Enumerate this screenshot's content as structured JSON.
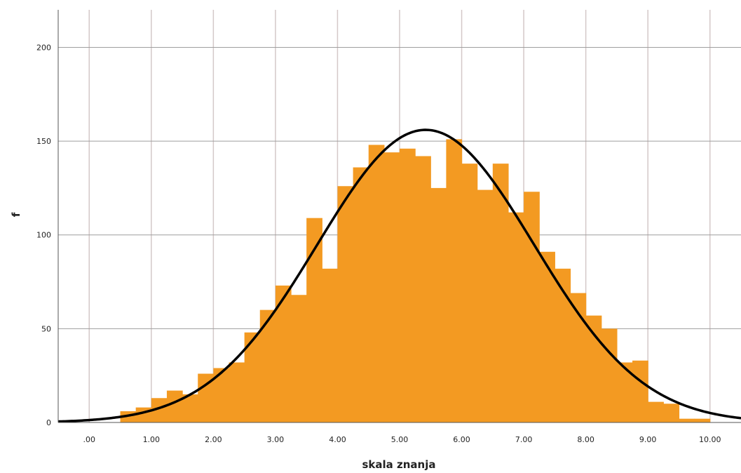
{
  "chart_data": {
    "type": "bar",
    "title": "",
    "xlabel": "skala znanja",
    "ylabel": "f",
    "xlim": [
      -0.5,
      10.5
    ],
    "ylim": [
      0,
      220
    ],
    "x_ticks": [
      0,
      1,
      2,
      3,
      4,
      5,
      6,
      7,
      8,
      9,
      10
    ],
    "x_tick_labels": [
      ".00",
      "1.00",
      "2.00",
      "3.00",
      "4.00",
      "5.00",
      "6.00",
      "7.00",
      "8.00",
      "9.00",
      "10.00"
    ],
    "y_ticks": [
      0,
      50,
      100,
      150,
      200
    ],
    "y_tick_labels": [
      "0",
      "50",
      "100",
      "150",
      "200"
    ],
    "grid": true,
    "bin_width": 0.25,
    "bins": [
      {
        "x0": 0.5,
        "value": 6
      },
      {
        "x0": 0.75,
        "value": 8
      },
      {
        "x0": 1.0,
        "value": 13
      },
      {
        "x0": 1.25,
        "value": 17
      },
      {
        "x0": 1.5,
        "value": 15
      },
      {
        "x0": 1.75,
        "value": 26
      },
      {
        "x0": 2.0,
        "value": 29
      },
      {
        "x0": 2.25,
        "value": 32
      },
      {
        "x0": 2.5,
        "value": 48
      },
      {
        "x0": 2.75,
        "value": 60
      },
      {
        "x0": 3.0,
        "value": 73
      },
      {
        "x0": 3.25,
        "value": 68
      },
      {
        "x0": 3.5,
        "value": 109
      },
      {
        "x0": 3.75,
        "value": 82
      },
      {
        "x0": 4.0,
        "value": 126
      },
      {
        "x0": 4.25,
        "value": 136
      },
      {
        "x0": 4.5,
        "value": 148
      },
      {
        "x0": 4.75,
        "value": 144
      },
      {
        "x0": 5.0,
        "value": 146
      },
      {
        "x0": 5.25,
        "value": 142
      },
      {
        "x0": 5.5,
        "value": 125
      },
      {
        "x0": 5.75,
        "value": 151
      },
      {
        "x0": 6.0,
        "value": 138
      },
      {
        "x0": 6.25,
        "value": 124
      },
      {
        "x0": 6.5,
        "value": 138
      },
      {
        "x0": 6.75,
        "value": 112
      },
      {
        "x0": 7.0,
        "value": 123
      },
      {
        "x0": 7.25,
        "value": 91
      },
      {
        "x0": 7.5,
        "value": 82
      },
      {
        "x0": 7.75,
        "value": 69
      },
      {
        "x0": 8.0,
        "value": 57
      },
      {
        "x0": 8.25,
        "value": 50
      },
      {
        "x0": 8.5,
        "value": 32
      },
      {
        "x0": 8.75,
        "value": 33
      },
      {
        "x0": 9.0,
        "value": 11
      },
      {
        "x0": 9.25,
        "value": 10
      },
      {
        "x0": 9.5,
        "value": 2
      },
      {
        "x0": 9.75,
        "value": 2
      }
    ],
    "normal_curve": {
      "mean": 5.42,
      "sd": 1.75,
      "peak": 156
    },
    "colors": {
      "bars": "#f39a22",
      "curve": "#000000",
      "grid": "#d4c8c8",
      "hgrid": "#9e9e9e"
    }
  }
}
